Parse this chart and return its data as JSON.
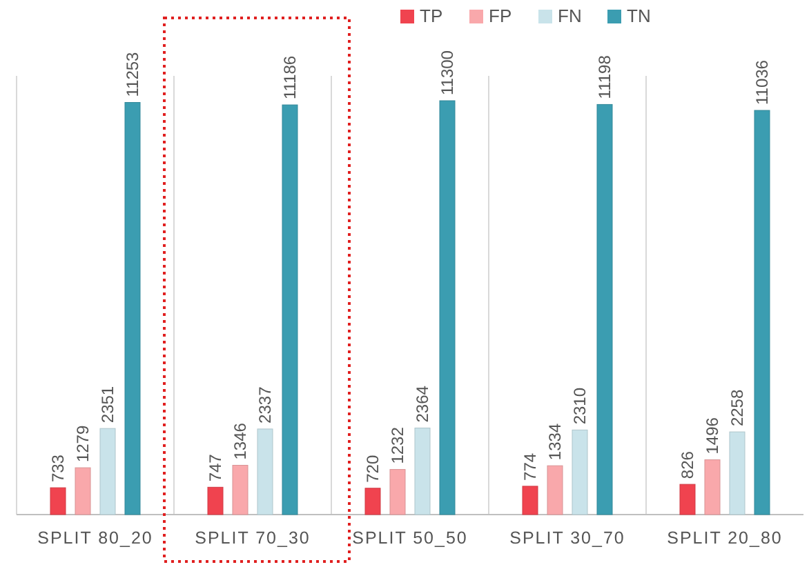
{
  "chart_data": {
    "type": "bar",
    "categories": [
      "SPLIT 80_20",
      "SPLIT 70_30",
      "SPLIT 50_50",
      "SPLIT 30_70",
      "SPLIT 20_80"
    ],
    "series": [
      {
        "name": "TP",
        "color": "#f0434f",
        "values": [
          733,
          747,
          720,
          774,
          826
        ]
      },
      {
        "name": "FP",
        "color": "#f9a8ab",
        "values": [
          1279,
          1346,
          1232,
          1334,
          1496
        ]
      },
      {
        "name": "FN",
        "color": "#c9e3ea",
        "values": [
          2351,
          2337,
          2364,
          2310,
          2258
        ]
      },
      {
        "name": "TN",
        "color": "#3b9db1",
        "values": [
          11253,
          11186,
          11300,
          11198,
          11036
        ]
      }
    ],
    "data_labels": true,
    "grid": "x",
    "legend": "top"
  }
}
